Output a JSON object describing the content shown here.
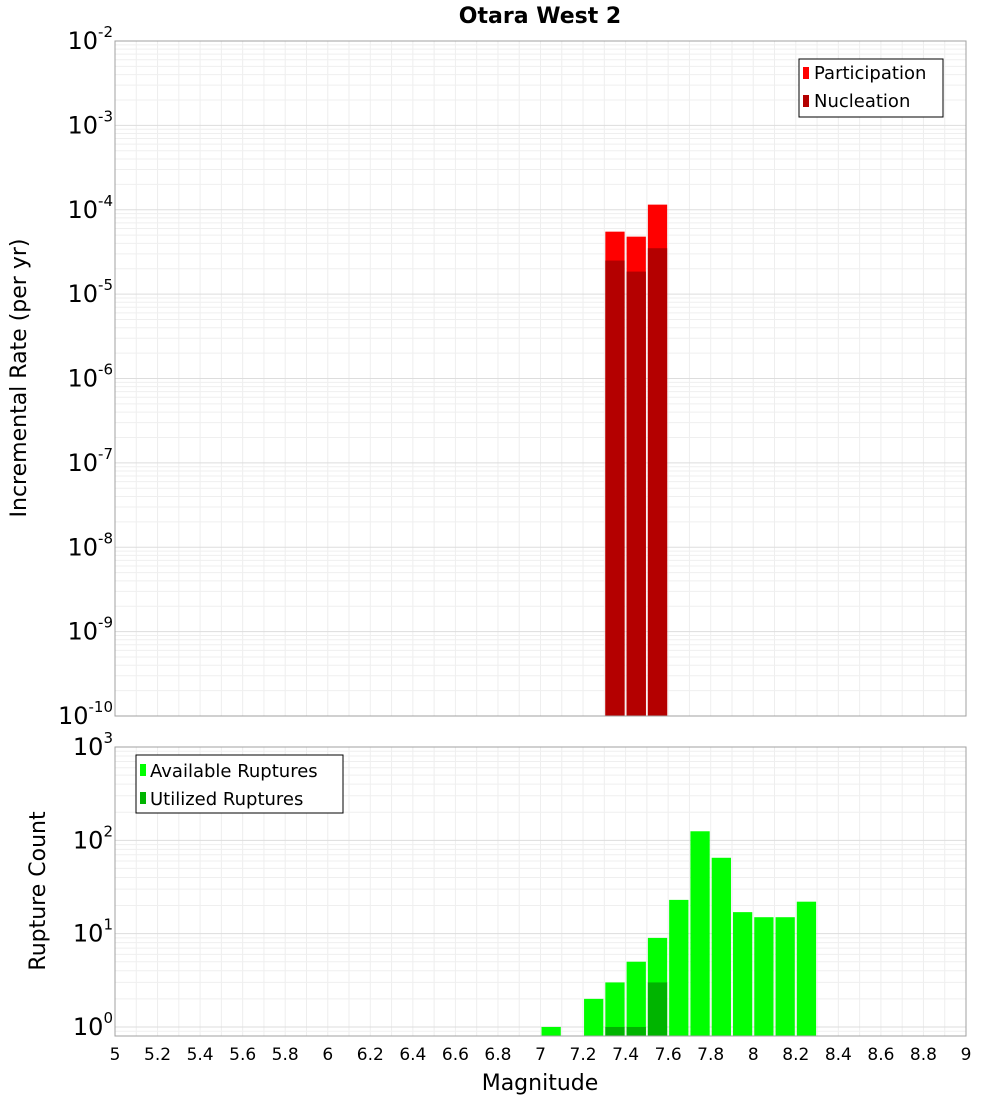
{
  "chart_data": [
    {
      "type": "bar",
      "title": "Otara West 2",
      "xlabel": "",
      "ylabel": "Incremental Rate (per yr)",
      "yscale": "log",
      "ylim": [
        1e-10,
        0.01
      ],
      "xlim": [
        5,
        9
      ],
      "bar_width": 0.1,
      "grid": true,
      "legend_position": "top-right",
      "ytick_bases": [
        "10",
        "10",
        "10",
        "10",
        "10",
        "10",
        "10",
        "10",
        "10"
      ],
      "ytick_exponents": [
        "-10",
        "-9",
        "-8",
        "-7",
        "-6",
        "-5",
        "-4",
        "-3",
        "-2"
      ],
      "ytick_values": [
        1e-10,
        1e-09,
        1e-08,
        1e-07,
        1e-06,
        1e-05,
        0.0001,
        0.001,
        0.01
      ],
      "series": [
        {
          "name": "Participation",
          "color": "#ff0000",
          "x": [
            7.35,
            7.45,
            7.55
          ],
          "values": [
            5.5e-05,
            4.8e-05,
            0.000115
          ]
        },
        {
          "name": "Nucleation",
          "color": "#b40000",
          "x": [
            7.35,
            7.45,
            7.55
          ],
          "values": [
            2.5e-05,
            1.85e-05,
            3.5e-05
          ]
        }
      ]
    },
    {
      "type": "bar",
      "title": "",
      "xlabel": "Magnitude",
      "ylabel": "Rupture Count",
      "yscale": "log",
      "ylim": [
        0.8,
        1000
      ],
      "xlim": [
        5,
        9
      ],
      "bar_width": 0.1,
      "grid": true,
      "legend_position": "top-left",
      "xtick_labels": [
        "5",
        "5.2",
        "5.4",
        "5.6",
        "5.8",
        "6",
        "6.2",
        "6.4",
        "6.6",
        "6.8",
        "7",
        "7.2",
        "7.4",
        "7.6",
        "7.8",
        "8",
        "8.2",
        "8.4",
        "8.6",
        "8.8",
        "9"
      ],
      "xtick_values": [
        5,
        5.2,
        5.4,
        5.6,
        5.8,
        6,
        6.2,
        6.4,
        6.6,
        6.8,
        7,
        7.2,
        7.4,
        7.6,
        7.8,
        8,
        8.2,
        8.4,
        8.6,
        8.8,
        9
      ],
      "ytick_bases": [
        "10",
        "10",
        "10",
        "10"
      ],
      "ytick_exponents": [
        "0",
        "1",
        "2",
        "3"
      ],
      "ytick_values": [
        1,
        10,
        100,
        1000
      ],
      "series": [
        {
          "name": "Available Ruptures",
          "color": "#00ff00",
          "x": [
            7.05,
            7.25,
            7.35,
            7.45,
            7.55,
            7.65,
            7.75,
            7.85,
            7.95,
            8.05,
            8.15,
            8.25
          ],
          "values": [
            1,
            2,
            3,
            5,
            9,
            23,
            125,
            65,
            17,
            15,
            15,
            22
          ]
        },
        {
          "name": "Utilized Ruptures",
          "color": "#00b400",
          "x": [
            7.35,
            7.45,
            7.55
          ],
          "values": [
            1,
            1,
            3
          ]
        }
      ]
    }
  ]
}
